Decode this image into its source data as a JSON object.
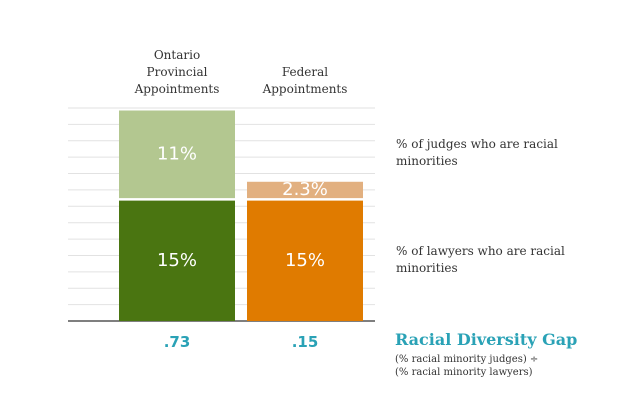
{
  "chart_data": {
    "type": "bar",
    "stacked": true,
    "categories": [
      "Ontario Provincial Appointments",
      "Federal Appointments"
    ],
    "series": [
      {
        "name": "% of lawyers who are racial minorities",
        "colors": [
          "#4a7511",
          "#e07b00"
        ],
        "values": [
          15,
          15
        ],
        "value_labels": [
          "15%",
          "15%"
        ]
      },
      {
        "name": "% of judges who are racial minorities",
        "colors": [
          "#b3c790",
          "#e2b080"
        ],
        "values": [
          11,
          2.3
        ],
        "value_labels": [
          "11%",
          "2.3%"
        ]
      }
    ],
    "ylim": [
      0,
      26
    ],
    "yticks": [
      0,
      2,
      4,
      6,
      8,
      10,
      12,
      14,
      16,
      18,
      20,
      22,
      24,
      26
    ],
    "grid": true,
    "gap": {
      "title": "Racial Diversity Gap",
      "values": [
        0.73,
        0.15
      ],
      "value_labels": [
        ".73",
        ".15"
      ],
      "note": [
        "(% racial minority judges) ÷",
        "(% racial minority lawyers)"
      ]
    }
  }
}
